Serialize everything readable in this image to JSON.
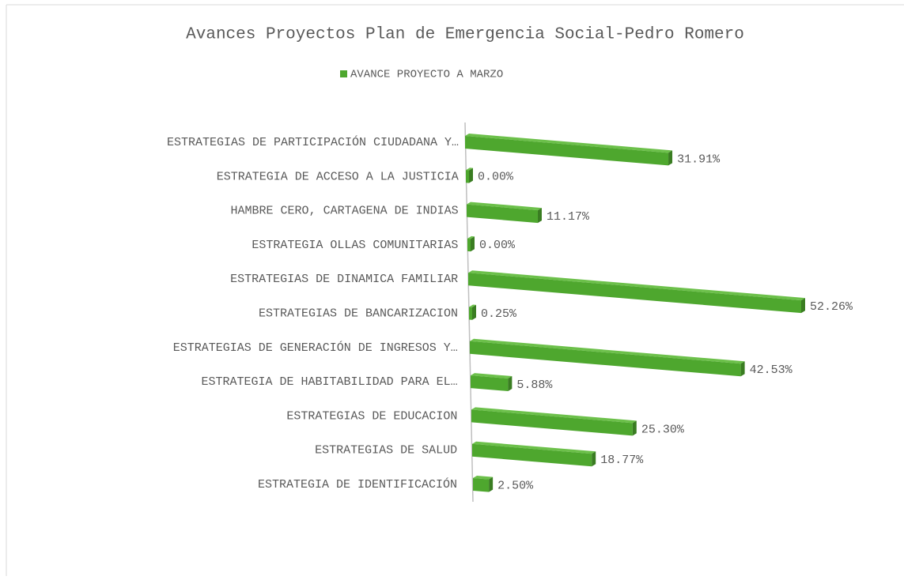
{
  "chart_data": {
    "type": "bar3d",
    "title": "Avances Proyectos Plan de Emergencia Social-Pedro Romero",
    "orientation": "horizontal",
    "categories": [
      "ESTRATEGIAS DE PARTICIPACIÓN CIUDADANA Y…",
      "ESTRATEGIA DE ACCESO A LA JUSTICIA",
      "HAMBRE CERO, CARTAGENA DE INDIAS",
      "ESTRATEGIA OLLAS COMUNITARIAS",
      "ESTRATEGIAS DE DINAMICA FAMILIAR",
      "ESTRATEGIAS DE BANCARIZACION",
      "ESTRATEGIAS DE GENERACIÓN DE INGRESOS Y…",
      "ESTRATEGIA DE HABITABILIDAD PARA EL…",
      "ESTRATEGIAS DE EDUCACION",
      "ESTRATEGIAS DE SALUD",
      "ESTRATEGIA DE IDENTIFICACIÓN"
    ],
    "series": [
      {
        "name": "AVANCE PROYECTO A MARZO",
        "color": "#4ea72e",
        "values": [
          31.91,
          0,
          11.17,
          0,
          52.26,
          0.25,
          42.53,
          5.88,
          25.3,
          18.77,
          2.5
        ],
        "value_labels": [
          "31.91%",
          "0.00%",
          "11.17%",
          "0.00%",
          "52.26%",
          "0.25%",
          "42.53%",
          "5.88%",
          "25.30%",
          "18.77%",
          "2.50%"
        ]
      }
    ],
    "legend": "top"
  }
}
